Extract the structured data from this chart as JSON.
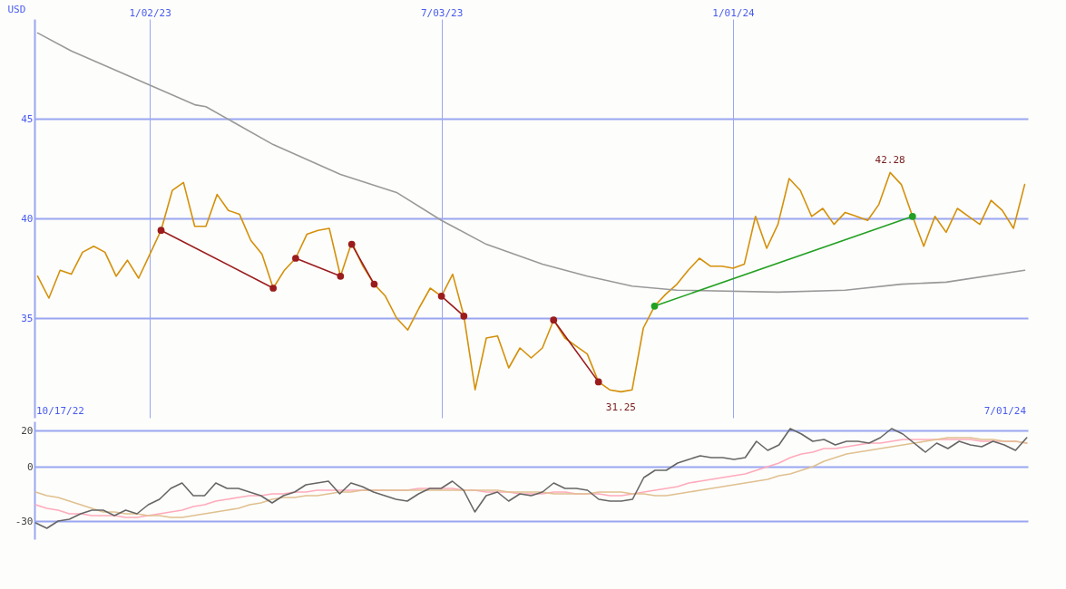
{
  "chart_data": [
    {
      "type": "line",
      "ylabel": "USD",
      "xlim": [
        "2022-10-22",
        "2024-07-03"
      ],
      "ylim": [
        30,
        50
      ],
      "yticks": [
        35,
        40,
        45
      ],
      "xticks": [
        {
          "value": "2023-01-02",
          "label": "1/02/23"
        },
        {
          "value": "2023-07-03",
          "label": "7/03/23"
        },
        {
          "value": "2024-01-01",
          "label": "1/01/24"
        }
      ],
      "grid": true,
      "x": [
        "2022-10-24",
        "2022-10-31",
        "2022-11-07",
        "2022-11-14",
        "2022-11-21",
        "2022-11-28",
        "2022-12-05",
        "2022-12-12",
        "2022-12-19",
        "2022-12-26",
        "2023-01-02",
        "2023-01-09",
        "2023-01-16",
        "2023-01-23",
        "2023-01-30",
        "2023-02-06",
        "2023-02-13",
        "2023-02-20",
        "2023-02-27",
        "2023-03-06",
        "2023-03-13",
        "2023-03-20",
        "2023-03-27",
        "2023-04-03",
        "2023-04-10",
        "2023-04-17",
        "2023-04-24",
        "2023-05-01",
        "2023-05-08",
        "2023-05-15",
        "2023-05-22",
        "2023-05-29",
        "2023-06-05",
        "2023-06-12",
        "2023-06-19",
        "2023-06-26",
        "2023-07-03",
        "2023-07-10",
        "2023-07-17",
        "2023-07-24",
        "2023-07-31",
        "2023-08-07",
        "2023-08-14",
        "2023-08-21",
        "2023-08-28",
        "2023-09-04",
        "2023-09-11",
        "2023-09-18",
        "2023-09-25",
        "2023-10-02",
        "2023-10-09",
        "2023-10-16",
        "2023-10-23",
        "2023-10-30",
        "2023-11-06",
        "2023-11-13",
        "2023-11-20",
        "2023-11-27",
        "2023-12-04",
        "2023-12-11",
        "2023-12-18",
        "2023-12-25",
        "2024-01-01",
        "2024-01-08",
        "2024-01-15",
        "2024-01-22",
        "2024-01-29",
        "2024-02-05",
        "2024-02-12",
        "2024-02-19",
        "2024-02-26",
        "2024-03-04",
        "2024-03-11",
        "2024-03-18",
        "2024-03-25",
        "2024-04-01",
        "2024-04-08",
        "2024-04-15",
        "2024-04-22",
        "2024-04-29",
        "2024-05-06",
        "2024-05-13",
        "2024-05-20",
        "2024-05-27",
        "2024-06-03",
        "2024-06-10",
        "2024-06-17",
        "2024-06-24",
        "2024-07-01"
      ],
      "series": [
        {
          "color": "#d4900a",
          "values": [
            37.1,
            36.0,
            37.4,
            37.2,
            38.3,
            38.6,
            38.3,
            37.1,
            37.9,
            37.0,
            38.2,
            39.4,
            41.4,
            41.8,
            39.6,
            39.6,
            41.2,
            40.4,
            40.2,
            38.9,
            38.2,
            36.5,
            37.4,
            38.0,
            39.2,
            39.4,
            39.5,
            37.1,
            38.8,
            37.6,
            36.7,
            36.1,
            35.0,
            34.4,
            35.5,
            36.5,
            36.1,
            37.2,
            35.1,
            31.4,
            34.0,
            34.1,
            32.5,
            33.5,
            33.0,
            33.5,
            34.9,
            34.0,
            33.6,
            33.2,
            31.8,
            31.4,
            31.3,
            31.4,
            34.5,
            35.6,
            36.2,
            36.7,
            37.4,
            38.0,
            37.6,
            37.6,
            37.5,
            37.7,
            40.1,
            38.5,
            39.7,
            42.0,
            41.4,
            40.1,
            40.5,
            39.7,
            40.3,
            40.1,
            39.9,
            40.7,
            42.3,
            41.7,
            40.1,
            38.6,
            40.1,
            39.3,
            40.5,
            40.1,
            39.7,
            40.9,
            40.4,
            39.5,
            41.7
          ]
        },
        {
          "color": "#999999",
          "x": [
            "2022-10-24",
            "2022-11-14",
            "2023-01-30",
            "2023-02-06",
            "2023-03-20",
            "2023-05-01",
            "2023-06-05",
            "2023-07-03",
            "2023-07-31",
            "2023-09-04",
            "2023-10-02",
            "2023-10-30",
            "2023-11-27",
            "2024-01-29",
            "2024-03-11",
            "2024-04-15",
            "2024-05-13",
            "2024-07-01"
          ],
          "values": [
            49.3,
            48.4,
            45.7,
            45.6,
            43.7,
            42.2,
            41.3,
            39.9,
            38.7,
            37.7,
            37.1,
            36.6,
            36.4,
            36.3,
            36.4,
            36.7,
            36.8,
            37.4
          ]
        },
        {
          "color": "#9b1c1c",
          "marker": "circle",
          "x": [
            "2023-01-09",
            "2023-03-20"
          ],
          "values": [
            39.4,
            36.5
          ]
        },
        {
          "color": "#9b1c1c",
          "marker": "circle",
          "x": [
            "2023-04-03",
            "2023-05-01"
          ],
          "values": [
            38.0,
            37.1
          ]
        },
        {
          "color": "#9b1c1c",
          "marker": "circle",
          "x": [
            "2023-05-08",
            "2023-05-22"
          ],
          "values": [
            38.7,
            36.7
          ]
        },
        {
          "color": "#9b1c1c",
          "marker": "circle",
          "x": [
            "2023-07-03",
            "2023-07-17"
          ],
          "values": [
            36.1,
            35.1
          ]
        },
        {
          "color": "#9b1c1c",
          "marker": "circle",
          "x": [
            "2023-09-11",
            "2023-10-09"
          ],
          "values": [
            34.9,
            31.8
          ]
        },
        {
          "color": "#22a022",
          "marker": "circle",
          "x": [
            "2023-11-13",
            "2024-04-22"
          ],
          "values": [
            35.6,
            40.1
          ]
        }
      ],
      "annotations": [
        {
          "text": "42.28",
          "x": "2024-04-08",
          "y": 42.28
        },
        {
          "text": "31.25",
          "x": "2023-10-23",
          "y": 31.25
        },
        "10/17/22",
        "7/01/24"
      ]
    },
    {
      "type": "line",
      "ylim": [
        -40,
        25
      ],
      "yticks": [
        -30,
        0,
        20
      ],
      "grid": "y",
      "categories": [
        null,
        null,
        null,
        null,
        null,
        null,
        null,
        null,
        null,
        null,
        null,
        null,
        null,
        null,
        null,
        null,
        null,
        null,
        null,
        null,
        null,
        null,
        null,
        null,
        null,
        null,
        null,
        null,
        null,
        null,
        null,
        null,
        null,
        null,
        null,
        null,
        null,
        null,
        null,
        null,
        null,
        null,
        null,
        null,
        null,
        null,
        null,
        null,
        null,
        null,
        null,
        null,
        null,
        null,
        null,
        null,
        null,
        null,
        null,
        null,
        null,
        null,
        null,
        null,
        null,
        null,
        null,
        null,
        null,
        null,
        null,
        null,
        null,
        null,
        null,
        null,
        null,
        null,
        null,
        null,
        null,
        null,
        null,
        null,
        null,
        null,
        null,
        null,
        null
      ],
      "series": [
        {
          "color": "#ffaabb",
          "values": [
            -21,
            -23,
            -24,
            -26,
            -26,
            -27,
            -27,
            -27,
            -28,
            -28,
            -27,
            -26,
            -25,
            -24,
            -22,
            -21,
            -19,
            -18,
            -17,
            -16,
            -16,
            -15,
            -15,
            -14,
            -14,
            -13,
            -13,
            -13,
            -13,
            -13,
            -13,
            -13,
            -13,
            -13,
            -12,
            -12,
            -12,
            -12,
            -13,
            -13,
            -14,
            -14,
            -14,
            -15,
            -15,
            -15,
            -14,
            -14,
            -15,
            -15,
            -15,
            -16,
            -16,
            -15,
            -14,
            -13,
            -12,
            -11,
            -9,
            -8,
            -7,
            -6,
            -5,
            -4,
            -2,
            0,
            2,
            5,
            7,
            8,
            10,
            10,
            11,
            12,
            13,
            13,
            14,
            15,
            15,
            15,
            15,
            15,
            15,
            15,
            14,
            14,
            14,
            14,
            13
          ]
        },
        {
          "color": "#e0c090",
          "values": [
            -14,
            -16,
            -17,
            -19,
            -21,
            -23,
            -25,
            -25,
            -26,
            -26,
            -27,
            -27,
            -28,
            -28,
            -27,
            -26,
            -25,
            -24,
            -23,
            -21,
            -20,
            -18,
            -17,
            -17,
            -16,
            -16,
            -15,
            -14,
            -14,
            -13,
            -13,
            -13,
            -13,
            -13,
            -13,
            -13,
            -13,
            -13,
            -13,
            -13,
            -13,
            -13,
            -14,
            -14,
            -14,
            -14,
            -15,
            -15,
            -15,
            -15,
            -14,
            -14,
            -14,
            -15,
            -15,
            -16,
            -16,
            -15,
            -14,
            -13,
            -12,
            -11,
            -10,
            -9,
            -8,
            -7,
            -5,
            -4,
            -2,
            0,
            3,
            5,
            7,
            8,
            9,
            10,
            11,
            12,
            13,
            14,
            15,
            16,
            16,
            16,
            15,
            15,
            14,
            14,
            13
          ]
        },
        {
          "color": "#666666",
          "values": [
            -31,
            -34,
            -30,
            -29,
            -26,
            -24,
            -24,
            -27,
            -24,
            -26,
            -21,
            -18,
            -12,
            -9,
            -16,
            -16,
            -9,
            -12,
            -12,
            -14,
            -16,
            -20,
            -16,
            -14,
            -10,
            -9,
            -8,
            -15,
            -9,
            -11,
            -14,
            -16,
            -18,
            -19,
            -15,
            -12,
            -12,
            -8,
            -13,
            -25,
            -16,
            -14,
            -19,
            -15,
            -16,
            -14,
            -9,
            -12,
            -12,
            -13,
            -18,
            -19,
            -19,
            -18,
            -6,
            -2,
            -2,
            2,
            4,
            6,
            5,
            5,
            4,
            5,
            14,
            9,
            12,
            21,
            18,
            14,
            15,
            12,
            14,
            14,
            13,
            16,
            21,
            18,
            13,
            8,
            13,
            10,
            14,
            12,
            11,
            14,
            12,
            9,
            16
          ]
        }
      ]
    }
  ]
}
